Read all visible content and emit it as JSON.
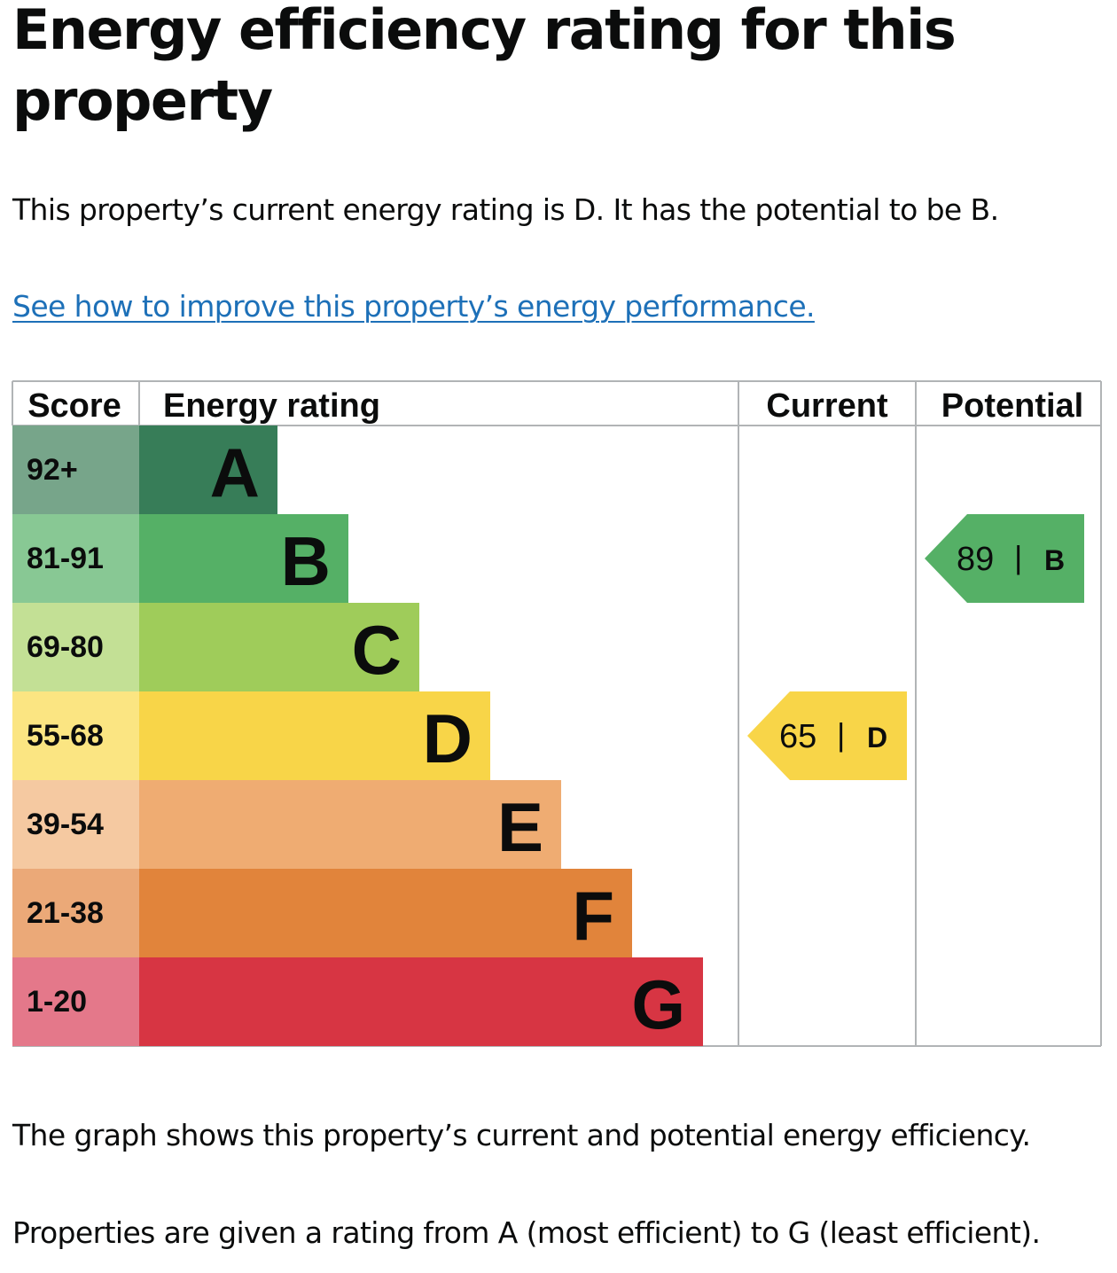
{
  "page": {
    "heading": "Energy efficiency rating for this property",
    "summary": "This property’s current energy rating is D. It has the potential to be B.",
    "improve_link": "See how to improve this property’s energy performance.",
    "graph_note": "The graph shows this property’s current and potential energy efficiency.",
    "rating_note": "Properties are given a rating from A (most efficient) to G (least efficient)."
  },
  "chart_data": {
    "type": "table",
    "columns": [
      "Score",
      "Energy rating",
      "Current",
      "Potential"
    ],
    "bands": [
      {
        "letter": "A",
        "score": "92+",
        "color": "#377d58",
        "score_bg": "#77a58a"
      },
      {
        "letter": "B",
        "score": "81-91",
        "color": "#55b066",
        "score_bg": "#88c894"
      },
      {
        "letter": "C",
        "score": "69-80",
        "color": "#9fcc5a",
        "score_bg": "#c3e095"
      },
      {
        "letter": "D",
        "score": "55-68",
        "color": "#f8d548",
        "score_bg": "#fbe582"
      },
      {
        "letter": "E",
        "score": "39-54",
        "color": "#efac72",
        "score_bg": "#f5c9a1"
      },
      {
        "letter": "F",
        "score": "21-38",
        "color": "#e1843b",
        "score_bg": "#eba978"
      },
      {
        "letter": "G",
        "score": "1-20",
        "color": "#d73543",
        "score_bg": "#e4788a"
      }
    ],
    "current": {
      "score": 65,
      "letter": "D",
      "separator": "|"
    },
    "potential": {
      "score": 89,
      "letter": "B",
      "separator": "|"
    }
  }
}
